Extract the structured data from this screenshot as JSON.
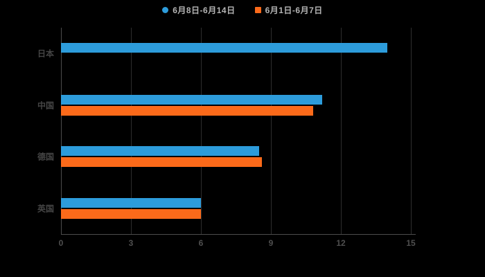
{
  "background": "#000000",
  "legend": {
    "items": [
      {
        "label": "6月8日-6月14日",
        "color": "#2d9cdb",
        "shape": "circle"
      },
      {
        "label": "6月1日-6月7日",
        "color": "#fb6a1a",
        "shape": "square"
      }
    ]
  },
  "chart_data": {
    "type": "bar",
    "orientation": "horizontal",
    "title": "",
    "xlabel": "",
    "ylabel": "",
    "categories": [
      "日本",
      "中国",
      "德国",
      "英国"
    ],
    "series": [
      {
        "name": "6月8日-6月14日",
        "color": "#2d9cdb",
        "values": [
          14,
          11.2,
          8.5,
          6
        ]
      },
      {
        "name": "6月1日-6月7日",
        "color": "#fb6a1a",
        "values": [
          0,
          10.8,
          8.6,
          6
        ]
      }
    ],
    "xlim": [
      0,
      15
    ],
    "xticks": [
      0,
      3,
      6,
      9,
      12,
      15
    ],
    "grid": true,
    "legend_position": "top",
    "plot_background": "#000000",
    "gridline_color": "#2e2e2e",
    "axis_color": "#4d4d4d",
    "label_color": "#454545",
    "tick_color": "#4f4f4f"
  }
}
